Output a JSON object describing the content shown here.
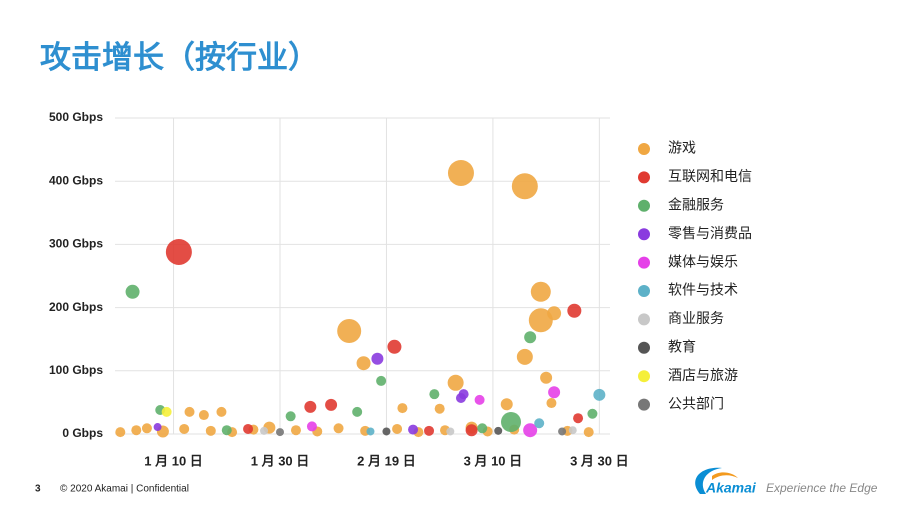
{
  "chart_data": {
    "type": "scatter",
    "title": "攻击增长（按行业）",
    "xlim": [
      -1,
      92
    ],
    "xticks": [
      {
        "value": 10,
        "label": "1 月 10 日"
      },
      {
        "value": 30,
        "label": "1 月 30 日"
      },
      {
        "value": 50,
        "label": "2 月 19 日"
      },
      {
        "value": 70,
        "label": "3 月 10 日"
      },
      {
        "value": 90,
        "label": "3 月 30 日"
      }
    ],
    "ylim": [
      0,
      500
    ],
    "yticks": [
      {
        "value": 0,
        "label": "0 Gbps"
      },
      {
        "value": 100,
        "label": "100 Gbps"
      },
      {
        "value": 200,
        "label": "200 Gbps"
      },
      {
        "value": 300,
        "label": "300 Gbps"
      },
      {
        "value": 400,
        "label": "400 Gbps"
      },
      {
        "value": 500,
        "label": "500 Gbps"
      }
    ],
    "grid": true,
    "legend": "right",
    "series": [
      {
        "name": "游戏",
        "color": "#f0a742",
        "x": [
          64,
          76,
          79,
          79,
          81.5,
          43,
          45.7,
          76,
          63,
          80,
          72.6,
          13,
          15.7,
          19,
          53,
          60,
          81,
          0,
          3,
          5,
          8,
          12,
          17,
          21,
          25,
          28,
          33,
          37,
          41,
          46,
          52,
          56,
          61,
          66,
          69,
          74,
          84,
          88
        ],
        "values": [
          413,
          392,
          225,
          180,
          191,
          163,
          112,
          122,
          81,
          89,
          47,
          35,
          30,
          35,
          41,
          40,
          49,
          3,
          6,
          9,
          4,
          8,
          5,
          3,
          7,
          10,
          6,
          4,
          9,
          5,
          8,
          3,
          6,
          10,
          4,
          7,
          5,
          3
        ],
        "sizes": [
          13,
          13,
          10,
          12,
          7,
          12,
          7,
          8,
          8,
          6,
          6,
          5,
          5,
          5,
          5,
          5,
          5,
          5,
          5,
          5,
          6,
          5,
          5,
          5,
          5,
          6,
          5,
          5,
          5,
          5,
          5,
          5,
          5,
          6,
          5,
          5,
          5,
          5
        ]
      },
      {
        "name": "互联网和电信",
        "color": "#e03a31",
        "x": [
          11,
          51.5,
          85.3,
          35.7,
          39.6,
          86,
          24,
          58,
          66
        ],
        "values": [
          288,
          138,
          195,
          43,
          46,
          25,
          8,
          5,
          6
        ],
        "sizes": [
          13,
          7,
          7,
          6,
          6,
          5,
          5,
          5,
          6
        ]
      },
      {
        "name": "金融服务",
        "color": "#5fb06c",
        "x": [
          2.3,
          77,
          49,
          59,
          73.4,
          7.5,
          32,
          88.7,
          44.5,
          20,
          68
        ],
        "values": [
          225,
          153,
          84,
          63,
          19,
          38,
          28,
          32,
          35,
          6,
          9
        ],
        "sizes": [
          7,
          6,
          5,
          5,
          10,
          5,
          5,
          5,
          5,
          5,
          5
        ]
      },
      {
        "name": "零售与消费品",
        "color": "#8a3bdf",
        "x": [
          48.3,
          64.5,
          64,
          7,
          55
        ],
        "values": [
          119,
          63,
          57,
          11,
          7
        ],
        "sizes": [
          6,
          5,
          5,
          4,
          5
        ]
      },
      {
        "name": "媒体与娱乐",
        "color": "#e540e8",
        "x": [
          81.5,
          67.5,
          77,
          36
        ],
        "values": [
          66,
          54,
          6,
          12
        ],
        "sizes": [
          6,
          5,
          7,
          5
        ]
      },
      {
        "name": "软件与技术",
        "color": "#5db1c8",
        "x": [
          90,
          78.7,
          47
        ],
        "values": [
          62,
          17,
          4
        ],
        "sizes": [
          6,
          5,
          4
        ]
      },
      {
        "name": "商业服务",
        "color": "#c8c8c8",
        "x": [
          27,
          62,
          85
        ],
        "values": [
          5,
          4,
          6
        ],
        "sizes": [
          4,
          4,
          4
        ]
      },
      {
        "name": "教育",
        "color": "#555555",
        "x": [
          50,
          71
        ],
        "values": [
          4,
          5
        ],
        "sizes": [
          4,
          4
        ]
      },
      {
        "name": "酒店与旅游",
        "color": "#f5ef3a",
        "x": [
          8.7
        ],
        "values": [
          35
        ],
        "sizes": [
          5
        ]
      },
      {
        "name": "公共部门",
        "color": "#777777",
        "x": [
          30,
          83
        ],
        "values": [
          3,
          4
        ],
        "sizes": [
          4,
          4
        ]
      }
    ]
  },
  "footer": {
    "page": "3",
    "copyright": "© 2020 Akamai | Confidential",
    "logo": "Akamai",
    "tagline": "Experience the Edge"
  }
}
